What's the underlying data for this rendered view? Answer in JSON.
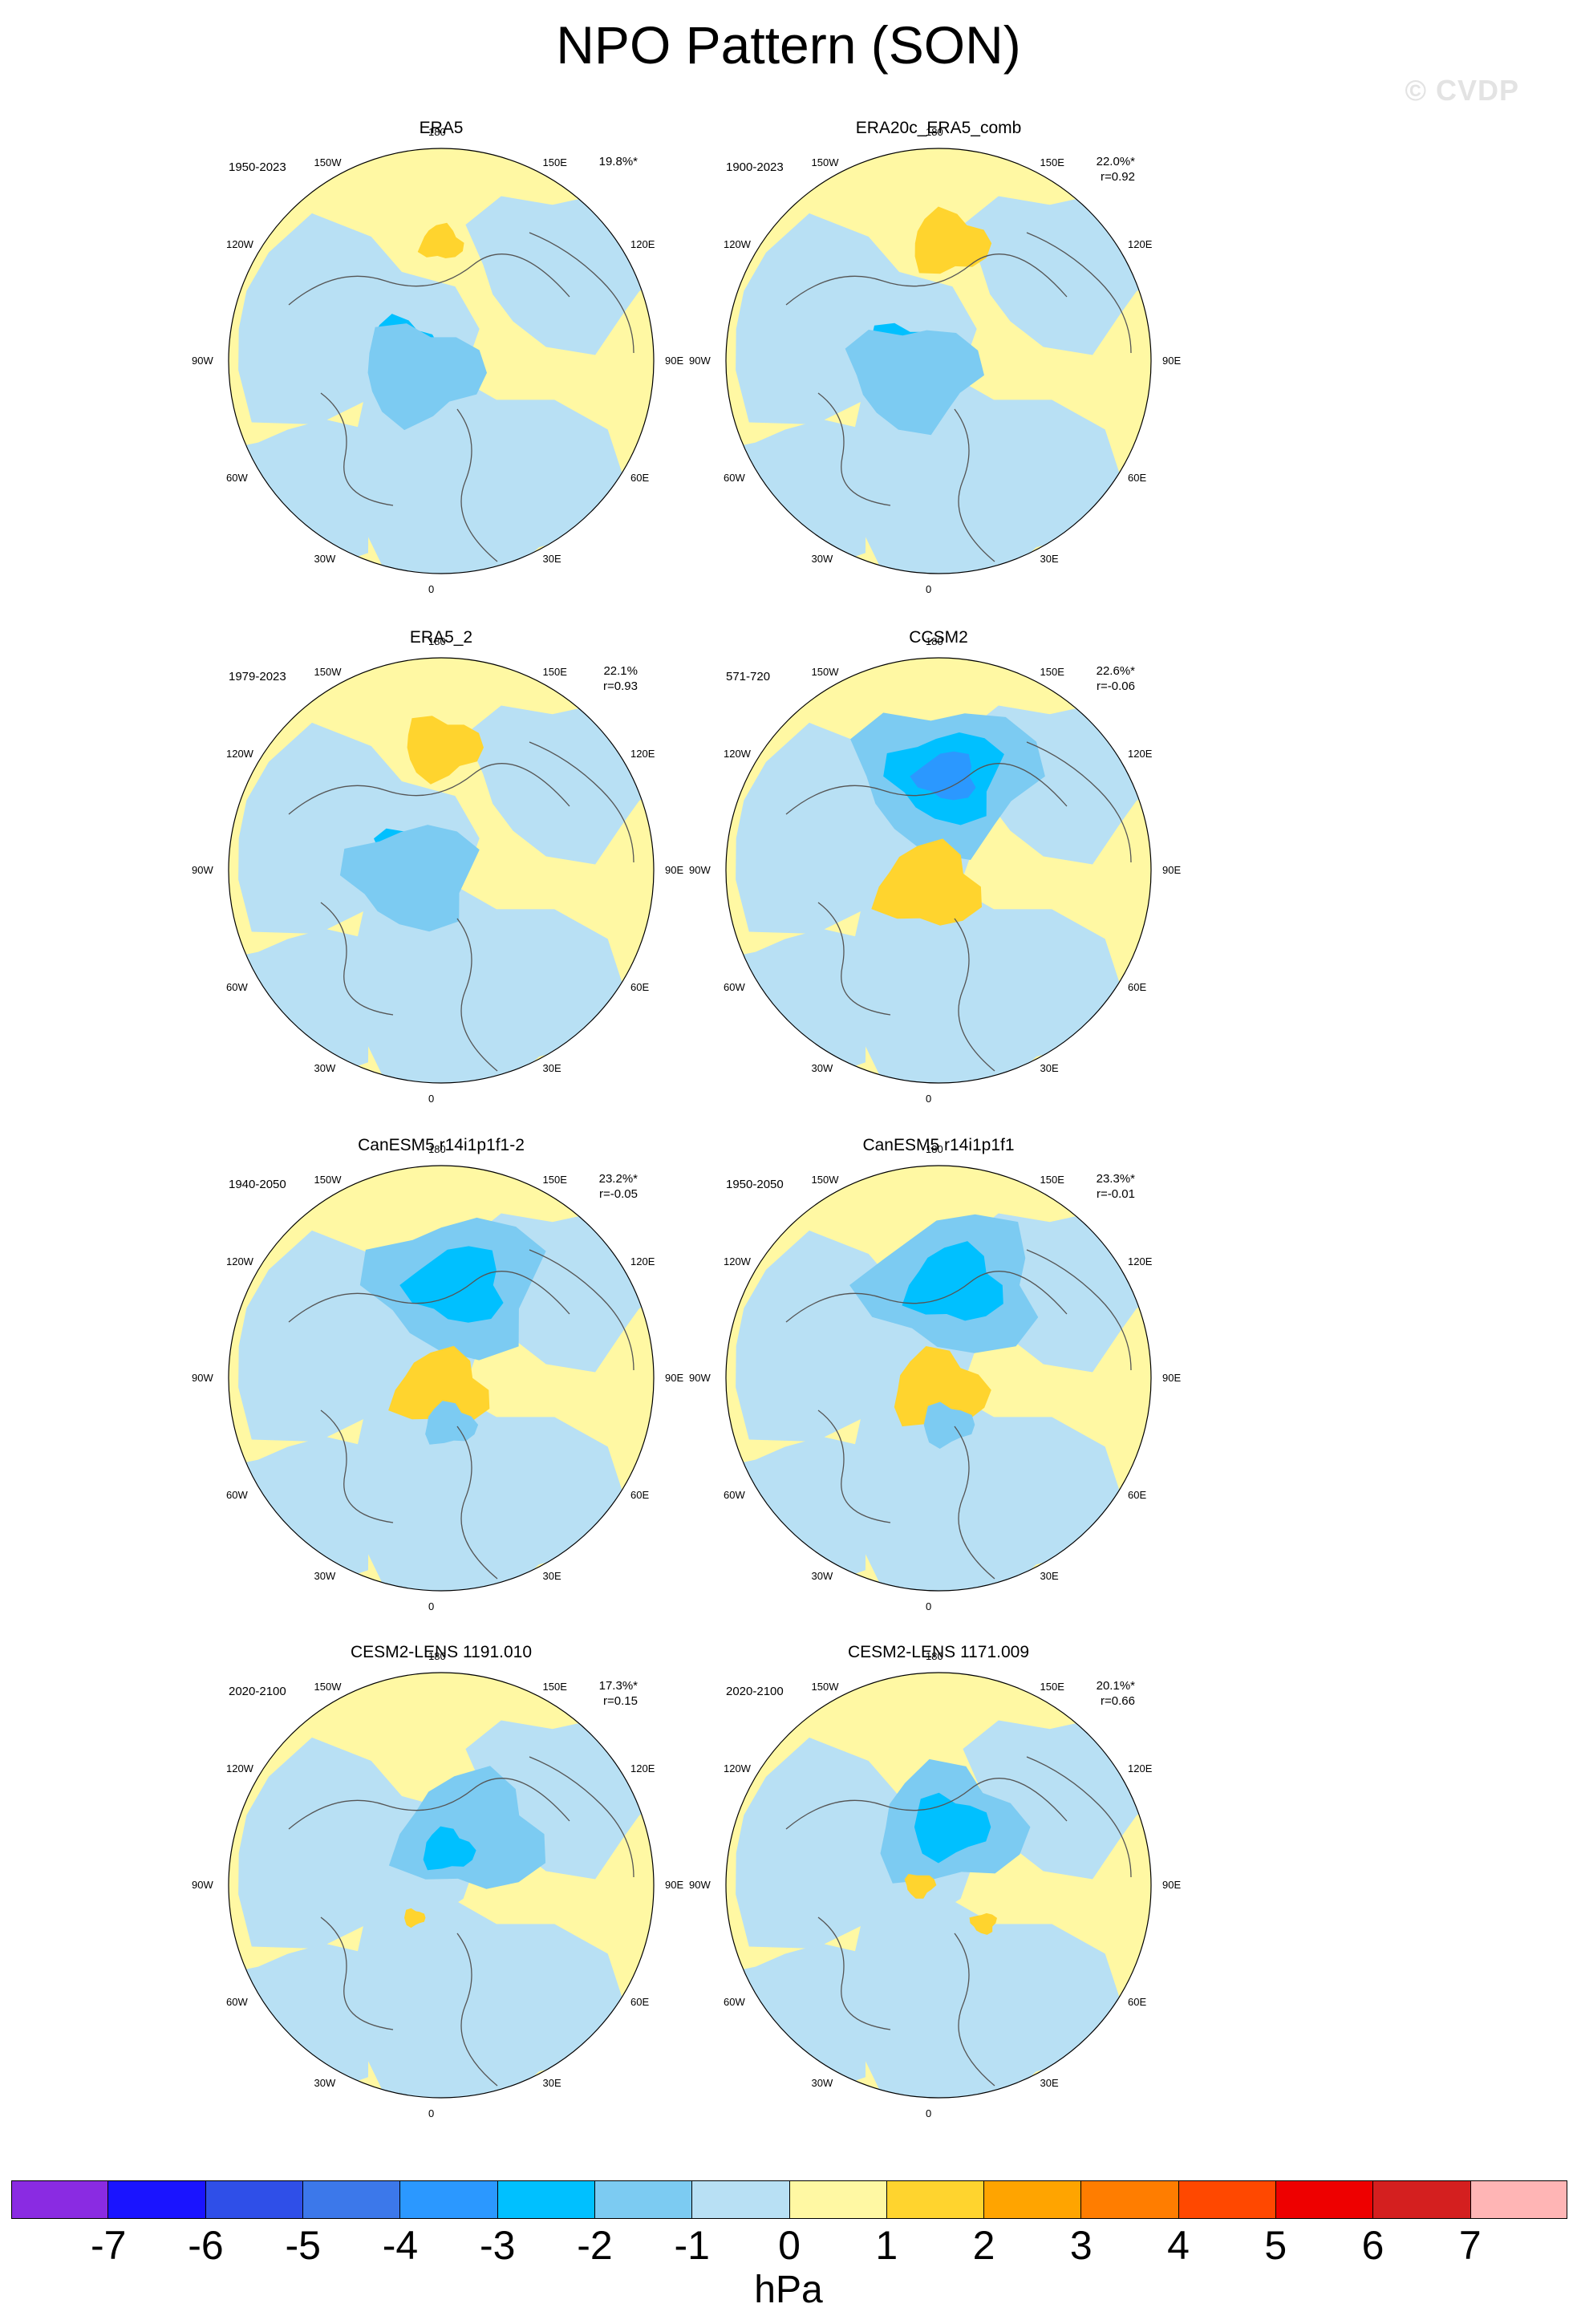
{
  "title": "NPO Pattern (SON)",
  "watermark": "© CVDP",
  "colors": {
    "neg7": "#8a2be2",
    "neg6": "#1a14ff",
    "neg5": "#2f4fe8",
    "neg4": "#3c78ea",
    "neg3": "#2b98ff",
    "neg2": "#00c0ff",
    "neg1": "#7ccbf2",
    "zero_neg": "#b8e0f4",
    "zero_pos": "#fff8a3",
    "pos1": "#ffd42e",
    "pos2": "#ffa400",
    "pos3": "#ff7d00",
    "pos4": "#ff4800",
    "pos5": "#ee0000",
    "pos6": "#d41f1f",
    "pos7": "#ffb5b5",
    "coast": "#555555"
  },
  "lon_labels": {
    "top": "180",
    "bottom": "0",
    "upper_left": "150W",
    "upper_right": "150E",
    "mid_upper_left": "120W",
    "mid_upper_right": "120E",
    "left": "90W",
    "right": "90E",
    "mid_lower_left": "60W",
    "mid_lower_right": "60E",
    "lower_left": "30W",
    "lower_right": "30E"
  },
  "panels": [
    {
      "name": "ERA5",
      "years": "1950-2023",
      "pct": "19.8%*",
      "r": "",
      "features": [
        {
          "lat": 40,
          "lon": 180,
          "level": 1,
          "size": 0.1
        },
        {
          "lat": 72,
          "lon": -110,
          "level": -2,
          "size": 0.16
        },
        {
          "lat": 80,
          "lon": -60,
          "level": -1,
          "size": 0.28
        }
      ]
    },
    {
      "name": "ERA20c_ERA5_comb",
      "years": "1900-2023",
      "pct": "22.0%*",
      "r": "r=0.92",
      "features": [
        {
          "lat": 40,
          "lon": 175,
          "level": 1,
          "size": 0.18
        },
        {
          "lat": 75,
          "lon": -100,
          "level": -2,
          "size": 0.18
        },
        {
          "lat": 78,
          "lon": -60,
          "level": -1,
          "size": 0.3
        }
      ]
    },
    {
      "name": "ERA5_2",
      "years": "1979-2023",
      "pct": "22.1%",
      "r": "r=0.93",
      "features": [
        {
          "lat": 38,
          "lon": 180,
          "level": 1,
          "size": 0.18
        },
        {
          "lat": 75,
          "lon": -120,
          "level": -2,
          "size": 0.16
        },
        {
          "lat": 78,
          "lon": -80,
          "level": -1,
          "size": 0.3
        }
      ]
    },
    {
      "name": "CCSM2",
      "years": "571-720",
      "pct": "22.6%*",
      "r": "r=-0.06",
      "features": [
        {
          "lat": 50,
          "lon": 175,
          "level": -1,
          "size": 0.42
        },
        {
          "lat": 50,
          "lon": 175,
          "level": -2,
          "size": 0.26
        },
        {
          "lat": 50,
          "lon": 175,
          "level": -3,
          "size": 0.14
        },
        {
          "lat": 82,
          "lon": -30,
          "level": 1,
          "size": 0.24
        }
      ]
    },
    {
      "name": "CanESM5 r14i1p1f1-2",
      "years": "1940-2050",
      "pct": "23.2%*",
      "r": "r=-0.05",
      "features": [
        {
          "lat": 50,
          "lon": 170,
          "level": -1,
          "size": 0.4
        },
        {
          "lat": 50,
          "lon": 170,
          "level": -2,
          "size": 0.22
        },
        {
          "lat": 85,
          "lon": 0,
          "level": 1,
          "size": 0.22
        },
        {
          "lat": 70,
          "lon": 10,
          "level": -1,
          "size": 0.12
        }
      ]
    },
    {
      "name": "CanESM5 r14i1p1f1",
      "years": "1950-2050",
      "pct": "23.3%*",
      "r": "r=-0.01",
      "features": [
        {
          "lat": 50,
          "lon": 170,
          "level": -1,
          "size": 0.4
        },
        {
          "lat": 50,
          "lon": 170,
          "level": -2,
          "size": 0.22
        },
        {
          "lat": 85,
          "lon": 0,
          "level": 1,
          "size": 0.22
        },
        {
          "lat": 70,
          "lon": 10,
          "level": -1,
          "size": 0.12
        }
      ]
    },
    {
      "name": "CESM2-LENS 1191.010",
      "years": "2020-2100",
      "pct": "17.3%*",
      "r": "r=0.15",
      "features": [
        {
          "lat": 65,
          "lon": 150,
          "level": -1,
          "size": 0.34
        },
        {
          "lat": 75,
          "lon": 170,
          "level": -2,
          "size": 0.12
        },
        {
          "lat": 72,
          "lon": -40,
          "level": 1,
          "size": 0.05
        }
      ]
    },
    {
      "name": "CESM2-LENS 1171.009",
      "years": "2020-2100",
      "pct": "20.1%*",
      "r": "r=0.66",
      "features": [
        {
          "lat": 65,
          "lon": 170,
          "level": -1,
          "size": 0.34
        },
        {
          "lat": 65,
          "lon": 170,
          "level": -2,
          "size": 0.18
        },
        {
          "lat": 82,
          "lon": -90,
          "level": 1,
          "size": 0.07
        },
        {
          "lat": 65,
          "lon": 50,
          "level": 1,
          "size": 0.06
        }
      ]
    }
  ],
  "colorbar": {
    "units": "hPa",
    "labels": [
      "-7",
      "-6",
      "-5",
      "-4",
      "-3",
      "-2",
      "-1",
      "0",
      "1",
      "2",
      "3",
      "4",
      "5",
      "6",
      "7"
    ]
  }
}
